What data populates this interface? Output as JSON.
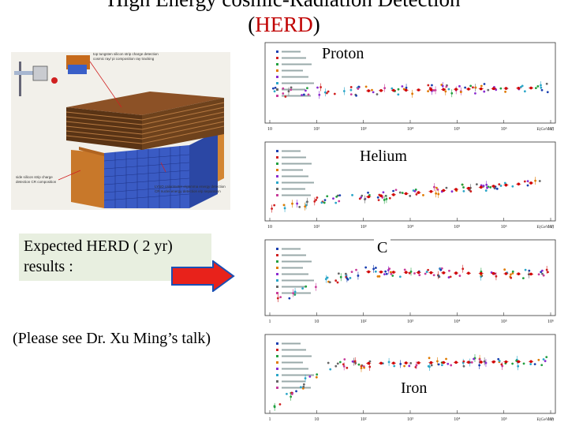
{
  "title": {
    "line1": "High Energy cosmic-Radiation Detection",
    "line2_prefix": "(",
    "line2_acronym": "HERD",
    "line2_suffix": ")",
    "acronym_color": "#c00000"
  },
  "detector_figure": {
    "callouts": [
      "top tungsten silicon strip charge detection cosmic ray/ pi composition ray tracking",
      "side silicon strip charge detection CR composition",
      "LYSO calorimeter e/gamma energy detection CR nuclei energy detection e/p separation"
    ]
  },
  "expected_box": {
    "line1": "Expected  HERD ( 2 yr)",
    "line2": "results :",
    "background": "#e8efe0"
  },
  "note": {
    "text": "(Please see Dr. Xu Ming’s talk)"
  },
  "arrow": {
    "color": "#e8221b",
    "border": "#1a4fb4"
  },
  "plots": [
    {
      "label": "Proton",
      "x_axis_label": "E(GeV/n)",
      "x_ticks": [
        "10",
        "10²",
        "10³",
        "10⁴",
        "10⁵",
        "10⁶",
        "10⁷"
      ]
    },
    {
      "label": "Helium",
      "x_axis_label": "E(GeV/n)",
      "x_ticks": [
        "10",
        "10²",
        "10³",
        "10⁴",
        "10⁵",
        "10⁶",
        "10⁷"
      ]
    },
    {
      "label": "C",
      "x_axis_label": "",
      "x_ticks": [
        "1",
        "10",
        "10²",
        "10³",
        "10⁴",
        "10⁵",
        "10⁶"
      ]
    },
    {
      "label": "Iron",
      "x_axis_label": "E(GeV/n)",
      "x_ticks": [
        "1",
        "10",
        "10²",
        "10³",
        "10⁴",
        "10⁵",
        "10⁶"
      ]
    }
  ]
}
